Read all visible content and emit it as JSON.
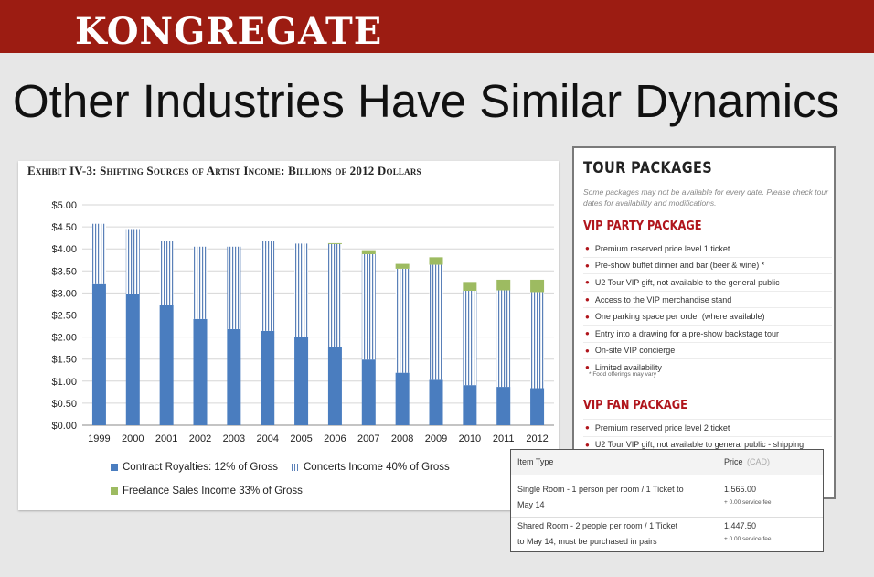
{
  "brand": {
    "logo": "KONGREGATE",
    "banner_color": "#9c1c12"
  },
  "slide": {
    "title": "Other Industries Have Similar Dynamics"
  },
  "chart_data": {
    "type": "bar",
    "stacked": true,
    "title": "Exhibit IV-3: Shifting Sources of Artist Income: Billions of 2012 Dollars",
    "categories": [
      "1999",
      "2000",
      "2001",
      "2002",
      "2003",
      "2004",
      "2005",
      "2006",
      "2007",
      "2008",
      "2009",
      "2010",
      "2011",
      "2012"
    ],
    "series": [
      {
        "name": "Contract Royalties: 12% of Gross",
        "color": "#4a7dbf",
        "values": [
          3.2,
          2.98,
          2.72,
          2.41,
          2.18,
          2.14,
          2.0,
          1.78,
          1.49,
          1.19,
          1.03,
          0.91,
          0.87,
          0.84
        ]
      },
      {
        "name": "Concerts Income 40% of Gross",
        "color": "#5a80b8",
        "values": [
          1.37,
          1.47,
          1.45,
          1.64,
          1.87,
          2.03,
          2.12,
          2.33,
          2.39,
          2.36,
          2.61,
          2.14,
          2.19,
          2.18
        ]
      },
      {
        "name": "Freelance Sales Income 33% of Gross",
        "color": "#9dbb61",
        "values": [
          0.0,
          0.0,
          0.0,
          0.0,
          0.0,
          0.0,
          0.0,
          0.02,
          0.09,
          0.11,
          0.17,
          0.2,
          0.24,
          0.28
        ]
      }
    ],
    "ylim": [
      0,
      5
    ],
    "yticks": [
      "$0.00",
      "$0.50",
      "$1.00",
      "$1.50",
      "$2.00",
      "$2.50",
      "$3.00",
      "$3.50",
      "$4.00",
      "$4.50",
      "$5.00"
    ],
    "grid": true,
    "legend_position": "bottom"
  },
  "tour": {
    "title": "TOUR PACKAGES",
    "note": "Some packages may not be available for every date. Please check tour dates for availability and modifications.",
    "vip_party": {
      "title": "VIP PARTY PACKAGE",
      "items": [
        "Premium reserved price level 1 ticket",
        "Pre-show buffet dinner and bar (beer & wine) *",
        "U2 Tour VIP gift, not available to the general public",
        "Access to the VIP merchandise stand",
        "One parking space per order (where available)",
        "Entry into a drawing for a pre-show backstage tour",
        "On-site VIP concierge",
        "Limited availability"
      ],
      "footnote": "* Food offerings may vary"
    },
    "vip_fan": {
      "title": "VIP FAN PACKAGE",
      "items": [
        "Premium reserved price level 2 ticket",
        "U2 Tour VIP gift, not available to general public - shipping"
      ]
    }
  },
  "price_table": {
    "header_item": "Item Type",
    "header_price": "Price",
    "header_currency": "(CAD)",
    "rows": [
      {
        "line1": "Single Room - 1 person per room / 1 Ticket to",
        "line2": "May 14",
        "price": "1,565.00",
        "fee": "+ 0.00 service fee"
      },
      {
        "line1": "Shared Room - 2 people per room / 1 Ticket",
        "line2": "to May 14, must be purchased in pairs",
        "price": "1,447.50",
        "fee": "+ 0.00 service fee"
      }
    ]
  }
}
